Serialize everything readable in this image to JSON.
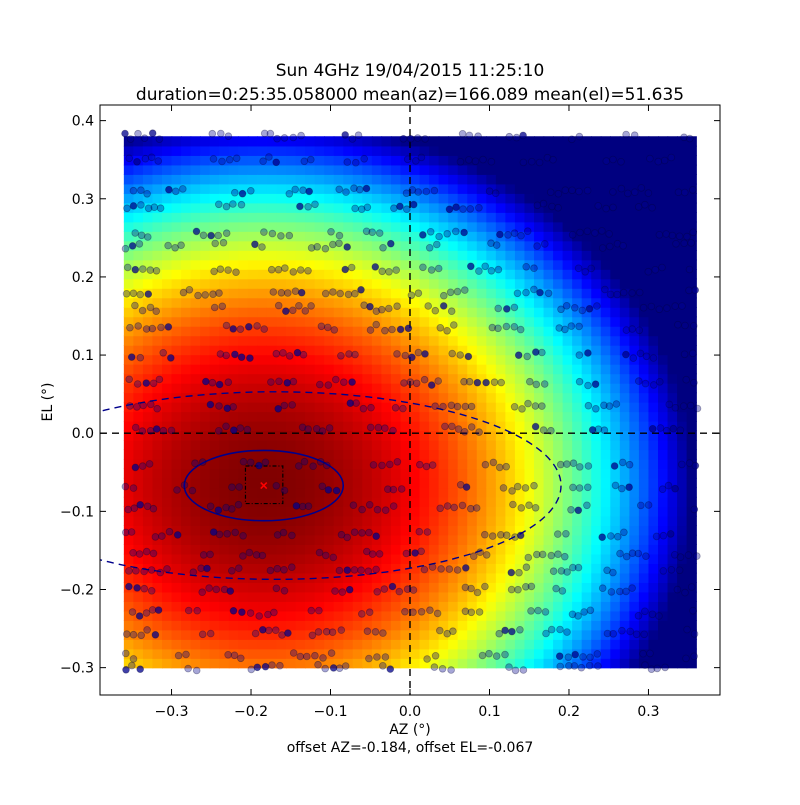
{
  "chart_data": {
    "type": "scatter",
    "title": "Sun 4GHz 19/04/2015 11:25:10",
    "subtitle": "duration=0:25:35.058000 mean(az)=166.089 mean(el)=51.635",
    "xlabel": "AZ (°)",
    "ylabel": "EL (°)",
    "footer": "offset AZ=-0.184, offset EL=-0.067",
    "xlim": [
      -0.39,
      0.39
    ],
    "ylim": [
      -0.335,
      0.42
    ],
    "x_ticks": [
      "−0.3",
      "−0.2",
      "−0.1",
      "0.0",
      "0.1",
      "0.2",
      "0.3"
    ],
    "x_tick_values": [
      -0.3,
      -0.2,
      -0.1,
      0.0,
      0.1,
      0.2,
      0.3
    ],
    "y_ticks": [
      "−0.3",
      "−0.2",
      "−0.1",
      "0.0",
      "0.1",
      "0.2",
      "0.3",
      "0.4"
    ],
    "y_tick_values": [
      -0.3,
      -0.2,
      -0.1,
      0.0,
      0.1,
      0.2,
      0.3,
      0.4
    ],
    "grid": false,
    "colormap": "jet",
    "heatmap_extent": {
      "x": [
        -0.36,
        0.36
      ],
      "y": [
        -0.3,
        0.38
      ]
    },
    "heatmap_peak": {
      "x": -0.184,
      "y": -0.067
    },
    "offset": {
      "az": -0.184,
      "el": -0.067
    },
    "crosshair": {
      "x": 0.0,
      "y": 0.0
    },
    "inner_ellipse": {
      "center": [
        -0.184,
        -0.067
      ],
      "semi_axes": [
        0.1,
        0.045
      ]
    },
    "outer_ellipse": {
      "center": [
        -0.17,
        -0.067
      ],
      "semi_axes": [
        0.36,
        0.12
      ]
    },
    "uncertainty_box": {
      "x": [
        -0.207,
        -0.16
      ],
      "y": [
        -0.09,
        -0.042
      ]
    },
    "marker_color": "#00008b",
    "scan_rows_el": [
      0.38,
      0.35,
      0.31,
      0.29,
      0.255,
      0.24,
      0.21,
      0.18,
      0.16,
      0.135,
      0.1,
      0.065,
      0.035,
      0.005,
      -0.04,
      -0.07,
      -0.095,
      -0.13,
      -0.155,
      -0.175,
      -0.2,
      -0.23,
      -0.255,
      -0.285,
      -0.3
    ]
  }
}
